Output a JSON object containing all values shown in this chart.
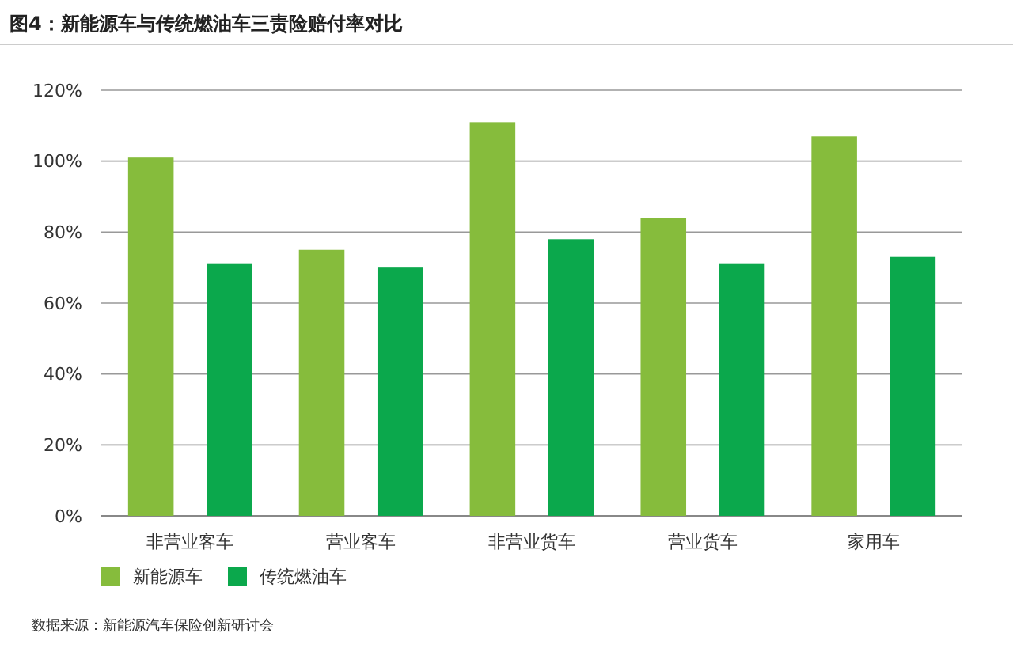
{
  "chart_data": {
    "type": "bar",
    "title": "图4：新能源车与传统燃油车三责险赔付率对比",
    "categories": [
      "非营业客车",
      "营业客车",
      "非营业货车",
      "营业货车",
      "家用车"
    ],
    "series": [
      {
        "name": "新能源车",
        "color": "#86bc3c",
        "values": [
          101,
          75,
          111,
          84,
          107
        ]
      },
      {
        "name": "传统燃油车",
        "color": "#0ba84c",
        "values": [
          71,
          70,
          78,
          71,
          73
        ]
      }
    ],
    "ylim": [
      0,
      120
    ],
    "yticks": [
      {
        "value": 0,
        "label": "0%"
      },
      {
        "value": 20,
        "label": "20%"
      },
      {
        "value": 40,
        "label": "40%"
      },
      {
        "value": 60,
        "label": "60%"
      },
      {
        "value": 80,
        "label": "80%"
      },
      {
        "value": 100,
        "label": "100%"
      },
      {
        "value": 120,
        "label": "120%"
      }
    ],
    "grid": "y",
    "legend": "bottom left",
    "annotations": [
      "数据来源：新能源汽车保险创新研讨会"
    ]
  }
}
